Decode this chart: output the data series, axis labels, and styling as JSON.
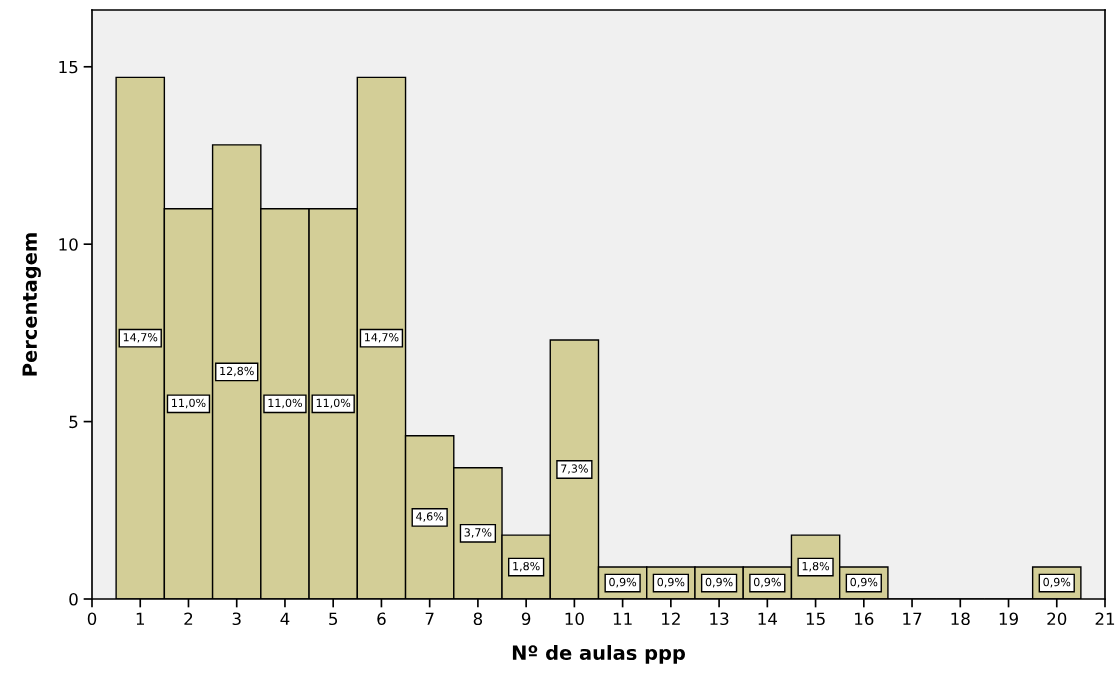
{
  "chart_data": {
    "type": "histogram",
    "xlabel": "Nº de aulas ppp",
    "ylabel": "Percentagem",
    "bins": [
      0.5,
      1.5,
      2.5,
      3.5,
      4.5,
      5.5,
      6.5,
      7.5,
      8.5,
      9.5,
      10.5,
      11.5,
      12.5,
      13.5,
      14.5,
      15.5,
      16.5,
      17.5,
      18.5,
      19.5,
      20.5
    ],
    "values": [
      14.7,
      11.0,
      12.8,
      11.0,
      11.0,
      14.7,
      4.6,
      3.7,
      1.8,
      7.3,
      0.9,
      0.9,
      0.9,
      0.9,
      1.8,
      0.9,
      0,
      0,
      0,
      0.9
    ],
    "value_labels": [
      "14,7%",
      "11,0%",
      "12,8%",
      "11,0%",
      "11,0%",
      "14,7%",
      "4,6%",
      "3,7%",
      "1,8%",
      "7,3%",
      "0,9%",
      "0,9%",
      "0,9%",
      "0,9%",
      "1,8%",
      "0,9%",
      null,
      null,
      null,
      "0,9%"
    ],
    "color": "#d3ce97",
    "xlim": [
      0,
      21
    ],
    "xticks": [
      0,
      1,
      2,
      3,
      4,
      5,
      6,
      7,
      8,
      9,
      10,
      11,
      12,
      13,
      14,
      15,
      16,
      17,
      18,
      19,
      20,
      21
    ],
    "ylim": [
      0,
      16.6
    ],
    "yticks": [
      0,
      5,
      10,
      15
    ],
    "grid": false
  }
}
